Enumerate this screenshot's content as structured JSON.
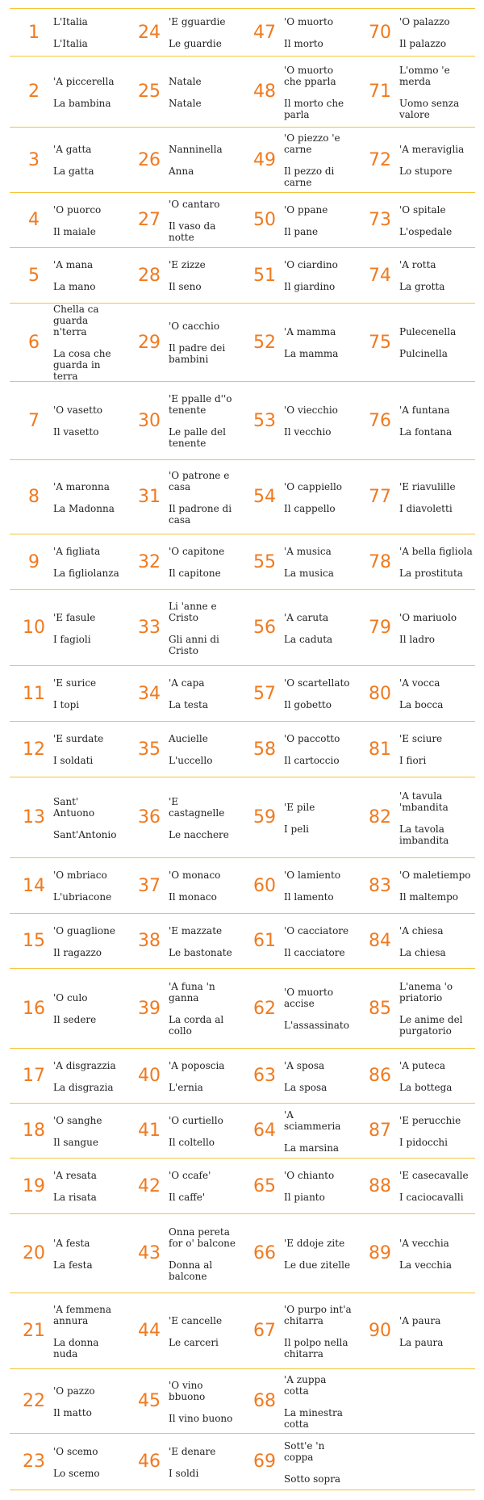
{
  "theme": {
    "accent": "#f07a1f",
    "line": "#f5c438",
    "text": "#222222"
  },
  "rows": [
    [
      {
        "number": "1",
        "dialect": "L'Italia",
        "italian": "L'Italia"
      },
      {
        "number": "24",
        "dialect": "'E gguardie",
        "italian": "Le guardie"
      },
      {
        "number": "47",
        "dialect": "'O muorto",
        "italian": "Il morto"
      },
      {
        "number": "70",
        "dialect": "'O palazzo",
        "italian": "Il palazzo"
      }
    ],
    [
      {
        "number": "2",
        "dialect": "'A piccerella",
        "italian": "La bambina"
      },
      {
        "number": "25",
        "dialect": "Natale",
        "italian": "Natale"
      },
      {
        "number": "48",
        "dialect": "'O muorto che pparla",
        "italian": "Il morto che parla"
      },
      {
        "number": "71",
        "dialect": "L'ommo 'e merda",
        "italian": "Uomo senza valore"
      }
    ],
    [
      {
        "number": "3",
        "dialect": "'A gatta",
        "italian": "La gatta"
      },
      {
        "number": "26",
        "dialect": "Nanninella",
        "italian": "Anna"
      },
      {
        "number": "49",
        "dialect": "'O piezzo 'e carne",
        "italian": "Il pezzo di carne"
      },
      {
        "number": "72",
        "dialect": "'A meraviglia",
        "italian": "Lo stupore"
      }
    ],
    [
      {
        "number": "4",
        "dialect": "'O puorco",
        "italian": "Il maiale"
      },
      {
        "number": "27",
        "dialect": "'O cantaro",
        "italian": "Il vaso da notte"
      },
      {
        "number": "50",
        "dialect": "'O ppane",
        "italian": "Il pane"
      },
      {
        "number": "73",
        "dialect": "'O spitale",
        "italian": "L'ospedale"
      }
    ],
    [
      {
        "number": "5",
        "dialect": "'A mana",
        "italian": "La mano"
      },
      {
        "number": "28",
        "dialect": "'E zizze",
        "italian": "Il seno"
      },
      {
        "number": "51",
        "dialect": "'O ciardino",
        "italian": "Il giardino"
      },
      {
        "number": "74",
        "dialect": "'A rotta",
        "italian": "La grotta"
      }
    ],
    [
      {
        "number": "6",
        "dialect": "Chella ca guarda n'terra",
        "italian": "La cosa che guarda in terra"
      },
      {
        "number": "29",
        "dialect": "'O cacchio",
        "italian": "Il padre dei bambini"
      },
      {
        "number": "52",
        "dialect": "'A mamma",
        "italian": "La mamma"
      },
      {
        "number": "75",
        "dialect": "Pulecenella",
        "italian": "Pulcinella"
      }
    ],
    [
      {
        "number": "7",
        "dialect": "'O vasetto",
        "italian": "Il vasetto"
      },
      {
        "number": "30",
        "dialect": "'E ppalle d''o tenente",
        "italian": "Le palle del tenente"
      },
      {
        "number": "53",
        "dialect": "'O viecchio",
        "italian": "Il vecchio"
      },
      {
        "number": "76",
        "dialect": "'A funtana",
        "italian": "La fontana"
      }
    ],
    [
      {
        "number": "8",
        "dialect": "'A maronna",
        "italian": "La Madonna"
      },
      {
        "number": "31",
        "dialect": "'O patrone e casa",
        "italian": "Il padrone di casa"
      },
      {
        "number": "54",
        "dialect": "'O cappiello",
        "italian": "Il cappello"
      },
      {
        "number": "77",
        "dialect": "'E riavulille",
        "italian": "I diavoletti"
      }
    ],
    [
      {
        "number": "9",
        "dialect": "'A figliata",
        "italian": "La figliolanza"
      },
      {
        "number": "32",
        "dialect": "'O capitone",
        "italian": "Il capitone"
      },
      {
        "number": "55",
        "dialect": "'A musica",
        "italian": "La musica"
      },
      {
        "number": "78",
        "dialect": "'A bella figliola",
        "italian": "La prostituta"
      }
    ],
    [
      {
        "number": "10",
        "dialect": "'E fasule",
        "italian": "I fagioli"
      },
      {
        "number": "33",
        "dialect": "Li 'anne e Cristo",
        "italian": "Gli anni di Cristo"
      },
      {
        "number": "56",
        "dialect": "'A caruta",
        "italian": "La caduta"
      },
      {
        "number": "79",
        "dialect": "'O mariuolo",
        "italian": "Il ladro"
      }
    ],
    [
      {
        "number": "11",
        "dialect": "'E surice",
        "italian": "I topi"
      },
      {
        "number": "34",
        "dialect": "'A capa",
        "italian": "La testa"
      },
      {
        "number": "57",
        "dialect": "'O scartellato",
        "italian": "Il gobetto"
      },
      {
        "number": "80",
        "dialect": "'A vocca",
        "italian": "La bocca"
      }
    ],
    [
      {
        "number": "12",
        "dialect": "'E surdate",
        "italian": "I soldati"
      },
      {
        "number": "35",
        "dialect": "Aucielle",
        "italian": "L'uccello"
      },
      {
        "number": "58",
        "dialect": "'O paccotto",
        "italian": "Il cartoccio"
      },
      {
        "number": "81",
        "dialect": "'E sciure",
        "italian": "I fiori"
      }
    ],
    [
      {
        "number": "13",
        "dialect": "Sant' Antuono",
        "italian": "Sant'Antonio"
      },
      {
        "number": "36",
        "dialect": "'E castagnelle",
        "italian": "Le nacchere"
      },
      {
        "number": "59",
        "dialect": "'E pile",
        "italian": "I peli"
      },
      {
        "number": "82",
        "dialect": "'A tavula 'mbandita",
        "italian": "La tavola imbandita"
      }
    ],
    [
      {
        "number": "14",
        "dialect": "'O mbriaco",
        "italian": "L'ubriacone"
      },
      {
        "number": "37",
        "dialect": "'O monaco",
        "italian": "Il monaco"
      },
      {
        "number": "60",
        "dialect": "'O lamiento",
        "italian": "Il lamento"
      },
      {
        "number": "83",
        "dialect": "'O maletiempo",
        "italian": "Il maltempo"
      }
    ],
    [
      {
        "number": "15",
        "dialect": "'O guaglione",
        "italian": "Il ragazzo"
      },
      {
        "number": "38",
        "dialect": "'E mazzate",
        "italian": "Le bastonate"
      },
      {
        "number": "61",
        "dialect": "'O cacciatore",
        "italian": "Il cacciatore"
      },
      {
        "number": "84",
        "dialect": "'A chiesa",
        "italian": "La chiesa"
      }
    ],
    [
      {
        "number": "16",
        "dialect": "'O culo",
        "italian": "Il sedere"
      },
      {
        "number": "39",
        "dialect": "'A funa 'n ganna",
        "italian": "La corda al collo"
      },
      {
        "number": "62",
        "dialect": "'O muorto accise",
        "italian": "L'assassinato"
      },
      {
        "number": "85",
        "dialect": "L'anema 'o priatorio",
        "italian": "Le anime del purgatorio"
      }
    ],
    [
      {
        "number": "17",
        "dialect": "'A disgrazzia",
        "italian": "La disgrazia"
      },
      {
        "number": "40",
        "dialect": "'A poposcia",
        "italian": "L'ernia"
      },
      {
        "number": "63",
        "dialect": "'A sposa",
        "italian": "La sposa"
      },
      {
        "number": "86",
        "dialect": "'A puteca",
        "italian": "La bottega"
      }
    ],
    [
      {
        "number": "18",
        "dialect": "'O sanghe",
        "italian": "Il sangue"
      },
      {
        "number": "41",
        "dialect": "'O curtiello",
        "italian": "Il coltello"
      },
      {
        "number": "64",
        "dialect": "'A sciammeria",
        "italian": "La marsina"
      },
      {
        "number": "87",
        "dialect": "'E perucchie",
        "italian": "I pidocchi"
      }
    ],
    [
      {
        "number": "19",
        "dialect": "'A resata",
        "italian": "La risata"
      },
      {
        "number": "42",
        "dialect": "'O ccafe'",
        "italian": "Il caffe'"
      },
      {
        "number": "65",
        "dialect": "'O chianto",
        "italian": "Il pianto"
      },
      {
        "number": "88",
        "dialect": "'E casecavalle",
        "italian": "I caciocavalli"
      }
    ],
    [
      {
        "number": "20",
        "dialect": "'A festa",
        "italian": "La festa"
      },
      {
        "number": "43",
        "dialect": "Onna pereta for o' balcone",
        "italian": "Donna al balcone"
      },
      {
        "number": "66",
        "dialect": "'E ddoje zite",
        "italian": "Le due zitelle"
      },
      {
        "number": "89",
        "dialect": "'A vecchia",
        "italian": "La vecchia"
      }
    ],
    [
      {
        "number": "21",
        "dialect": "'A femmena annura",
        "italian": "La donna nuda"
      },
      {
        "number": "44",
        "dialect": "'E cancelle",
        "italian": "Le carceri"
      },
      {
        "number": "67",
        "dialect": "'O purpo int'a chitarra",
        "italian": "Il polpo nella chitarra"
      },
      {
        "number": "90",
        "dialect": "'A paura",
        "italian": "La paura"
      }
    ],
    [
      {
        "number": "22",
        "dialect": "'O pazzo",
        "italian": "Il matto"
      },
      {
        "number": "45",
        "dialect": "'O vino bbuono",
        "italian": "Il vino buono"
      },
      {
        "number": "68",
        "dialect": "'A zuppa cotta",
        "italian": "La minestra cotta"
      }
    ],
    [
      {
        "number": "23",
        "dialect": "'O scemo",
        "italian": "Lo scemo"
      },
      {
        "number": "46",
        "dialect": "'E denare",
        "italian": "I soldi"
      },
      {
        "number": "69",
        "dialect": "Sott'e 'n coppa",
        "italian": "Sotto sopra"
      }
    ]
  ]
}
